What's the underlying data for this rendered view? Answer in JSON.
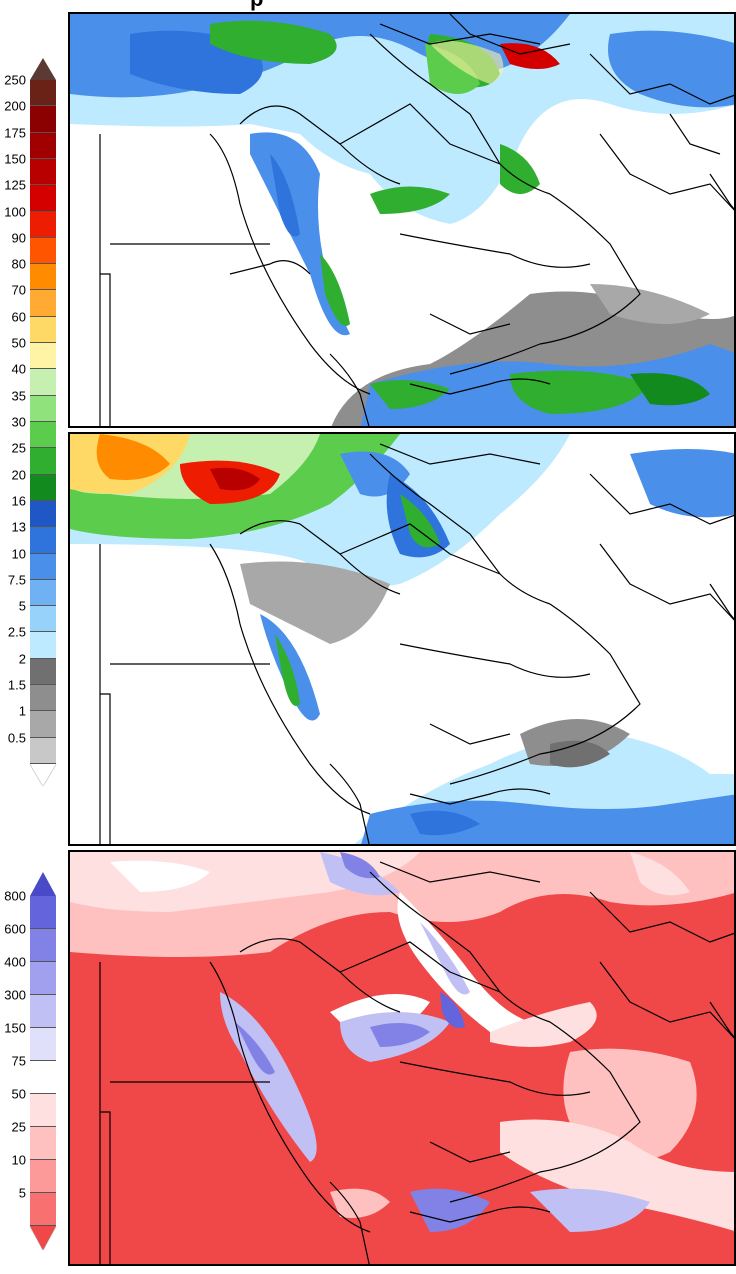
{
  "title": "p",
  "colorbar_precip": {
    "top_arrow_color": "#5a3a33",
    "bottom_arrow_color": "#ffffff",
    "levels": [
      {
        "label": "250",
        "color": "#6b2216"
      },
      {
        "label": "200",
        "color": "#8b0000"
      },
      {
        "label": "175",
        "color": "#a00000"
      },
      {
        "label": "150",
        "color": "#b80000"
      },
      {
        "label": "125",
        "color": "#d40000"
      },
      {
        "label": "100",
        "color": "#ee1c00"
      },
      {
        "label": "90",
        "color": "#ff5500"
      },
      {
        "label": "80",
        "color": "#ff8c00"
      },
      {
        "label": "70",
        "color": "#ffaa33"
      },
      {
        "label": "60",
        "color": "#ffd966"
      },
      {
        "label": "50",
        "color": "#fff3a6"
      },
      {
        "label": "40",
        "color": "#c5f0b0"
      },
      {
        "label": "35",
        "color": "#8fe27c"
      },
      {
        "label": "30",
        "color": "#5ccc4c"
      },
      {
        "label": "25",
        "color": "#2fae2f"
      },
      {
        "label": "20",
        "color": "#128a1e"
      },
      {
        "label": "16",
        "color": "#1f58c4"
      },
      {
        "label": "13",
        "color": "#2f74dd"
      },
      {
        "label": "10",
        "color": "#4a90ea"
      },
      {
        "label": "7.5",
        "color": "#6fb1f3"
      },
      {
        "label": "5",
        "color": "#96d2fa"
      },
      {
        "label": "2.5",
        "color": "#bdeaff"
      },
      {
        "label": "2",
        "color": "#707070"
      },
      {
        "label": "1.5",
        "color": "#8e8e8e"
      },
      {
        "label": "1",
        "color": "#a8a8a8"
      },
      {
        "label": "0.5",
        "color": "#c8c8c8"
      }
    ]
  },
  "colorbar_percent": {
    "top_arrow_color": "#4a4ac8",
    "bottom_arrow_color": "#f04848",
    "levels": [
      {
        "label": "800",
        "color": "#6464dc"
      },
      {
        "label": "600",
        "color": "#8282e6"
      },
      {
        "label": "400",
        "color": "#a0a0ee"
      },
      {
        "label": "300",
        "color": "#c0c0f4"
      },
      {
        "label": "150",
        "color": "#e0e0fa"
      },
      {
        "label": "75",
        "color": "#ffffff"
      },
      {
        "label": "50",
        "color": "#ffe0e0"
      },
      {
        "label": "25",
        "color": "#ffc0c0"
      },
      {
        "label": "10",
        "color": "#fc9a9a"
      },
      {
        "label": "5",
        "color": "#f87070"
      }
    ]
  }
}
